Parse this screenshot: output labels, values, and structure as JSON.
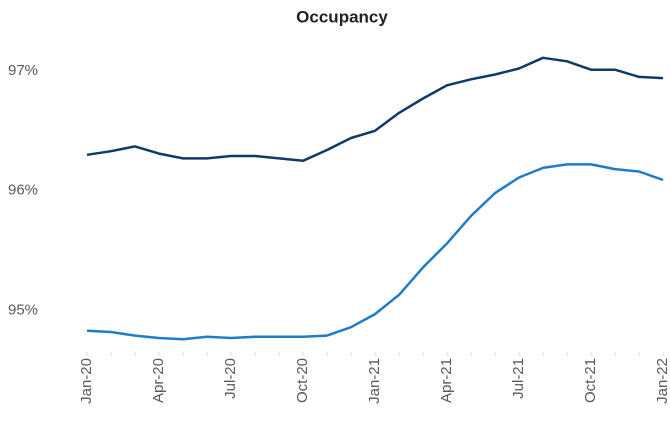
{
  "chart_data": {
    "type": "line",
    "title": "Occupancy",
    "categories": [
      "Jan-20",
      null,
      null,
      "Apr-20",
      null,
      null,
      "Jul-20",
      null,
      null,
      "Oct-20",
      null,
      null,
      "Jan-21",
      null,
      null,
      "Apr-21",
      null,
      null,
      "Jul-21",
      null,
      null,
      "Oct-21",
      null,
      null,
      "Jan-22"
    ],
    "series": [
      {
        "color": "#0e3a6c",
        "values": [
          96.3,
          96.33,
          96.37,
          96.31,
          96.27,
          96.27,
          96.29,
          96.29,
          96.27,
          96.25,
          96.34,
          96.44,
          96.5,
          96.65,
          96.77,
          96.88,
          96.93,
          96.97,
          97.02,
          97.11,
          97.08,
          97.01,
          97.01,
          96.95,
          96.94
        ]
      },
      {
        "color": "#1f7cc8",
        "values": [
          94.83,
          94.82,
          94.79,
          94.77,
          94.76,
          94.78,
          94.77,
          94.78,
          94.78,
          94.78,
          94.79,
          94.86,
          94.97,
          95.13,
          95.36,
          95.56,
          95.79,
          95.98,
          96.11,
          96.19,
          96.22,
          96.22,
          96.18,
          96.16,
          96.09
        ]
      }
    ],
    "ylim": [
      94.67,
      97.3
    ],
    "yticks": [
      {
        "value": 95,
        "label": "95%"
      },
      {
        "value": 96,
        "label": "96%"
      },
      {
        "value": 97,
        "label": "97%"
      }
    ],
    "grid": false
  }
}
